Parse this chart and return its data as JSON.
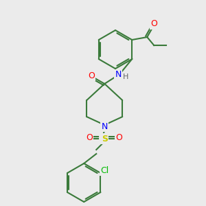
{
  "background_color": "#ebebeb",
  "bond_color": "#3a7a3a",
  "atom_colors": {
    "O": "#ff0000",
    "N": "#0000ff",
    "S": "#cccc00",
    "Cl": "#00bb00",
    "C": "#3a7a3a",
    "H": "#666666"
  },
  "lw": 1.5,
  "fs": 9,
  "fs_small": 8
}
